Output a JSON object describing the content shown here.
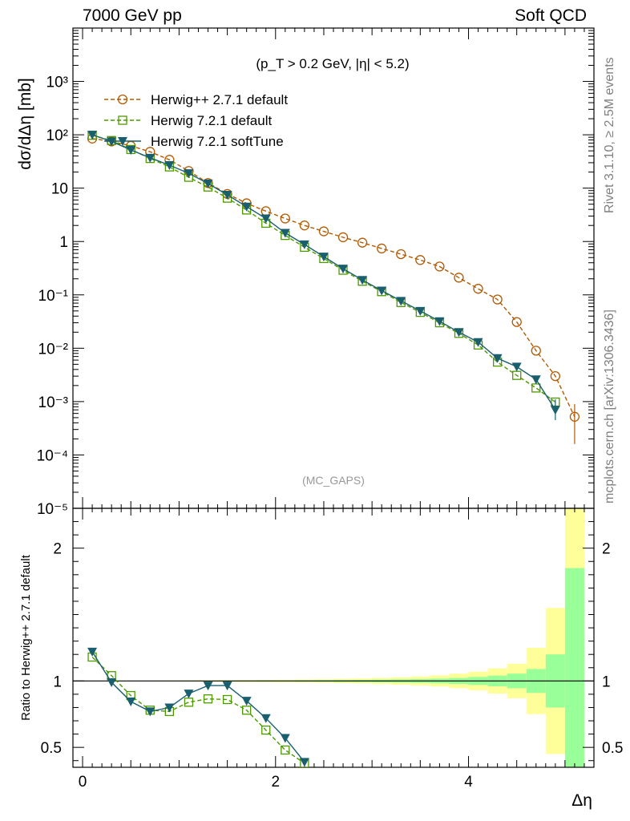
{
  "header": {
    "left": "7000 GeV pp",
    "right": "Soft QCD"
  },
  "side_labels": {
    "rivet": "Rivet 3.1.10, ≥ 2.5M events",
    "source": "mcplots.cern.ch [arXiv:1306.3436]"
  },
  "chart_data": [
    {
      "type": "line",
      "panel": "main",
      "title": "(p_T > 0.2 GeV, |η| < 5.2)",
      "watermark": "(MC_GAPS)",
      "ylabel": "dσ/dΔη [mb]",
      "xlabel": "",
      "yscale": "log",
      "xlim": [
        -0.1,
        5.3
      ],
      "ylim": [
        1e-05,
        10000
      ],
      "x_ticks": [
        "0",
        "2",
        "4"
      ],
      "y_ticks": [
        "10⁻⁵",
        "10⁻⁴",
        "10⁻³",
        "10⁻²",
        "10⁻¹",
        "1",
        "10",
        "10²",
        "10³"
      ],
      "legend_position": "top-left",
      "series": [
        {
          "name": "Herwig++ 2.7.1 default",
          "color": "#b35900",
          "marker": "open-circle",
          "line": "dashed",
          "x": [
            0.1,
            0.3,
            0.5,
            0.7,
            0.9,
            1.1,
            1.3,
            1.5,
            1.7,
            1.9,
            2.1,
            2.3,
            2.5,
            2.7,
            2.9,
            3.1,
            3.3,
            3.5,
            3.7,
            3.9,
            4.1,
            4.3,
            4.5,
            4.7,
            4.9,
            5.1
          ],
          "y": [
            85,
            75,
            62,
            48,
            34,
            21,
            12.5,
            7.8,
            5.2,
            3.7,
            2.7,
            2.0,
            1.55,
            1.2,
            0.95,
            0.74,
            0.58,
            0.45,
            0.34,
            0.21,
            0.13,
            0.082,
            0.031,
            0.009,
            0.003,
            0.00052
          ]
        },
        {
          "name": "Herwig 7.2.1 default",
          "color": "#4d9900",
          "marker": "open-square",
          "line": "dashed",
          "x": [
            0.1,
            0.3,
            0.5,
            0.7,
            0.9,
            1.1,
            1.3,
            1.5,
            1.7,
            1.9,
            2.1,
            2.3,
            2.5,
            2.7,
            2.9,
            3.1,
            3.3,
            3.5,
            3.7,
            3.9,
            4.1,
            4.3,
            4.5,
            4.7,
            4.9
          ],
          "y": [
            98,
            78,
            53,
            36,
            25,
            16,
            10.5,
            6.5,
            3.9,
            2.2,
            1.3,
            0.78,
            0.48,
            0.29,
            0.18,
            0.115,
            0.072,
            0.047,
            0.03,
            0.019,
            0.0115,
            0.0055,
            0.0031,
            0.0018,
            0.00098
          ]
        },
        {
          "name": "Herwig 7.2.1 softTune",
          "color": "#1a5f6e",
          "marker": "filled-triangle-down",
          "line": "solid",
          "x": [
            0.1,
            0.3,
            0.5,
            0.7,
            0.9,
            1.1,
            1.3,
            1.5,
            1.7,
            1.9,
            2.1,
            2.3,
            2.5,
            2.7,
            2.9,
            3.1,
            3.3,
            3.5,
            3.7,
            3.9,
            4.1,
            4.3,
            4.5,
            4.7,
            4.9
          ],
          "y": [
            100,
            75,
            52,
            37,
            27,
            19,
            12.2,
            7.5,
            4.5,
            2.7,
            1.45,
            0.88,
            0.52,
            0.31,
            0.19,
            0.12,
            0.077,
            0.05,
            0.032,
            0.02,
            0.013,
            0.0065,
            0.0045,
            0.0026,
            0.0007
          ]
        }
      ]
    },
    {
      "type": "line",
      "panel": "ratio",
      "ylabel": "Ratio to Herwig++ 2.7.1 default",
      "xlabel": "Δη",
      "xlim": [
        -0.1,
        5.3
      ],
      "ylim": [
        0.35,
        2.3
      ],
      "x_ticks": [
        "0",
        "2",
        "4"
      ],
      "y_ticks": [
        "0.5",
        "1",
        "2"
      ],
      "reference_line": 1,
      "uncertainty_bands": {
        "x_edges": [
          0.0,
          0.2,
          0.4,
          0.6,
          0.8,
          1.0,
          1.2,
          1.4,
          1.6,
          1.8,
          2.0,
          2.2,
          2.4,
          2.6,
          2.8,
          3.0,
          3.2,
          3.4,
          3.6,
          3.8,
          4.0,
          4.2,
          4.4,
          4.6,
          4.8,
          5.0,
          5.2
        ],
        "green_half_width": [
          0.001,
          0.001,
          0.001,
          0.001,
          0.001,
          0.002,
          0.002,
          0.003,
          0.003,
          0.004,
          0.004,
          0.005,
          0.006,
          0.007,
          0.008,
          0.01,
          0.012,
          0.014,
          0.018,
          0.023,
          0.03,
          0.04,
          0.055,
          0.09,
          0.2,
          0.85
        ],
        "yellow_half_width": [
          0.002,
          0.002,
          0.002,
          0.002,
          0.003,
          0.004,
          0.005,
          0.006,
          0.007,
          0.008,
          0.009,
          0.011,
          0.013,
          0.016,
          0.019,
          0.023,
          0.028,
          0.034,
          0.042,
          0.055,
          0.07,
          0.095,
          0.13,
          0.25,
          0.55,
          1.3
        ]
      },
      "series": [
        {
          "name": "Herwig 7.2.1 default",
          "color": "#4d9900",
          "marker": "open-square",
          "line": "dashed",
          "x": [
            0.1,
            0.3,
            0.5,
            0.7,
            0.9,
            1.1,
            1.3,
            1.5,
            1.7,
            1.9,
            2.1,
            2.3
          ],
          "y": [
            1.18,
            1.04,
            0.89,
            0.78,
            0.77,
            0.84,
            0.865,
            0.86,
            0.78,
            0.63,
            0.48,
            0.38
          ]
        },
        {
          "name": "Herwig 7.2.1 softTune",
          "color": "#1a5f6e",
          "marker": "filled-triangle-down",
          "line": "solid",
          "x": [
            0.1,
            0.3,
            0.5,
            0.7,
            0.9,
            1.1,
            1.3,
            1.5,
            1.7,
            1.9,
            2.1,
            2.3
          ],
          "y": [
            1.22,
            0.99,
            0.845,
            0.77,
            0.8,
            0.905,
            0.965,
            0.965,
            0.85,
            0.72,
            0.57,
            0.39
          ]
        }
      ]
    }
  ]
}
